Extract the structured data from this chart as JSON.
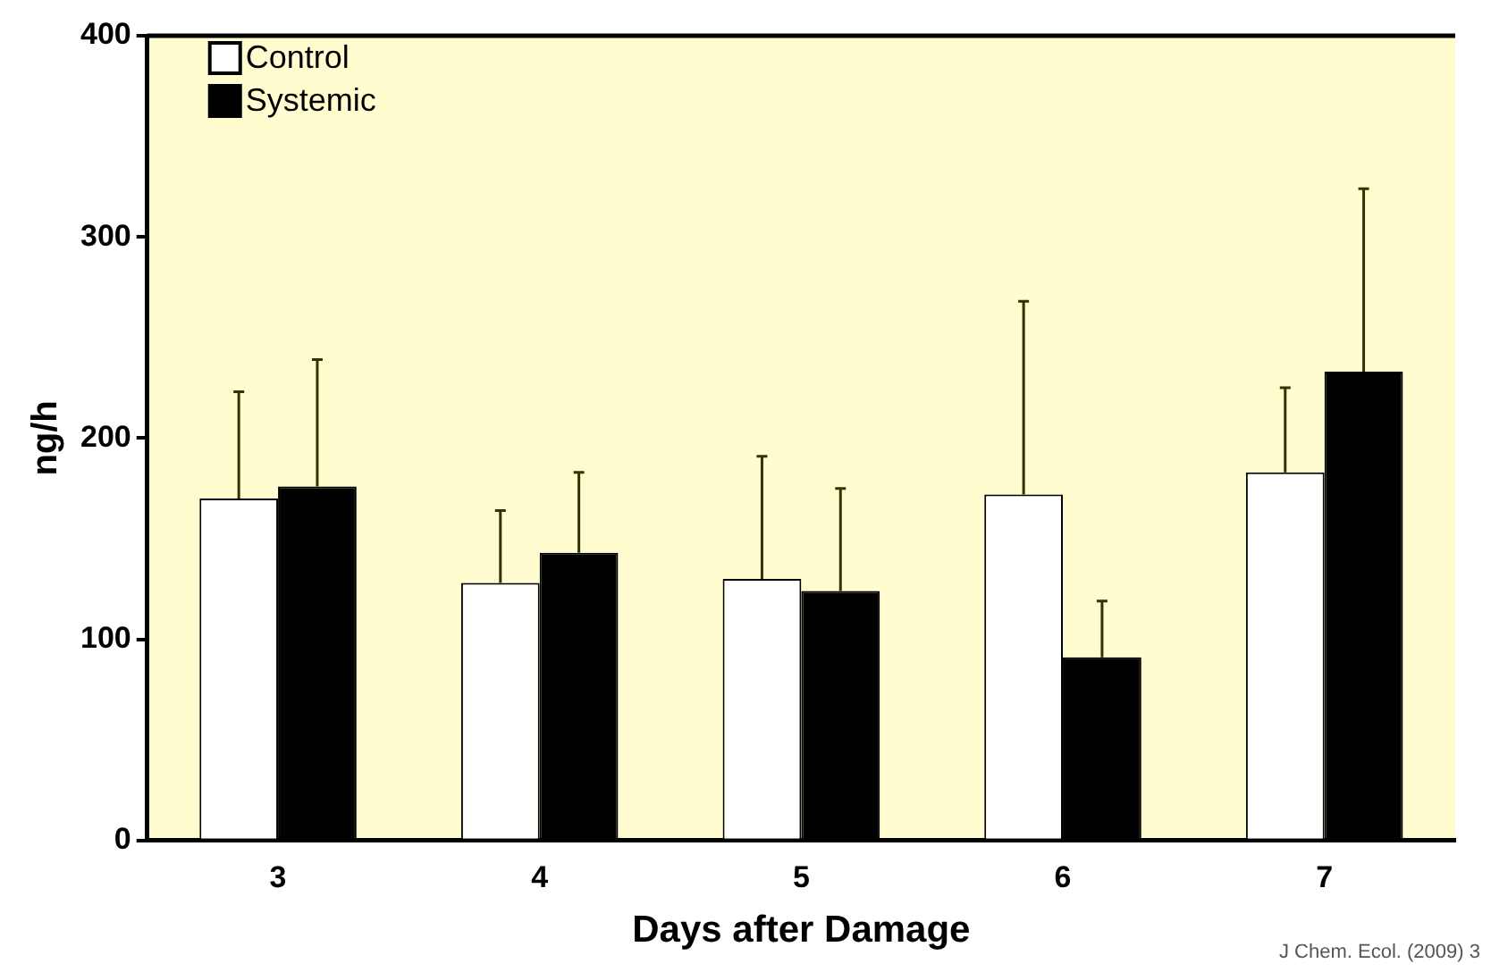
{
  "chart_data": {
    "type": "bar",
    "xlabel": "Days after Damage",
    "ylabel": "ng/h",
    "categories": [
      "3",
      "4",
      "5",
      "6",
      "7"
    ],
    "series": [
      {
        "name": "Control",
        "color": "#ffffff",
        "values": [
          170,
          128,
          130,
          172,
          183
        ],
        "errors": [
          [
            170,
            223
          ],
          [
            128,
            164
          ],
          [
            130,
            191
          ],
          [
            172,
            268
          ],
          [
            183,
            225
          ]
        ]
      },
      {
        "name": "Systemic",
        "color": "#000000",
        "values": [
          176,
          143,
          124,
          91,
          233
        ],
        "errors": [
          [
            176,
            239
          ],
          [
            143,
            183
          ],
          [
            124,
            175
          ],
          [
            91,
            119
          ],
          [
            233,
            324
          ]
        ]
      }
    ],
    "ylim": [
      0,
      400
    ],
    "yticks": [
      0,
      100,
      200,
      300,
      400
    ],
    "grid": false,
    "legend": "top left",
    "annotations": [
      "J Chem. Ecol. (2009) 3"
    ]
  }
}
